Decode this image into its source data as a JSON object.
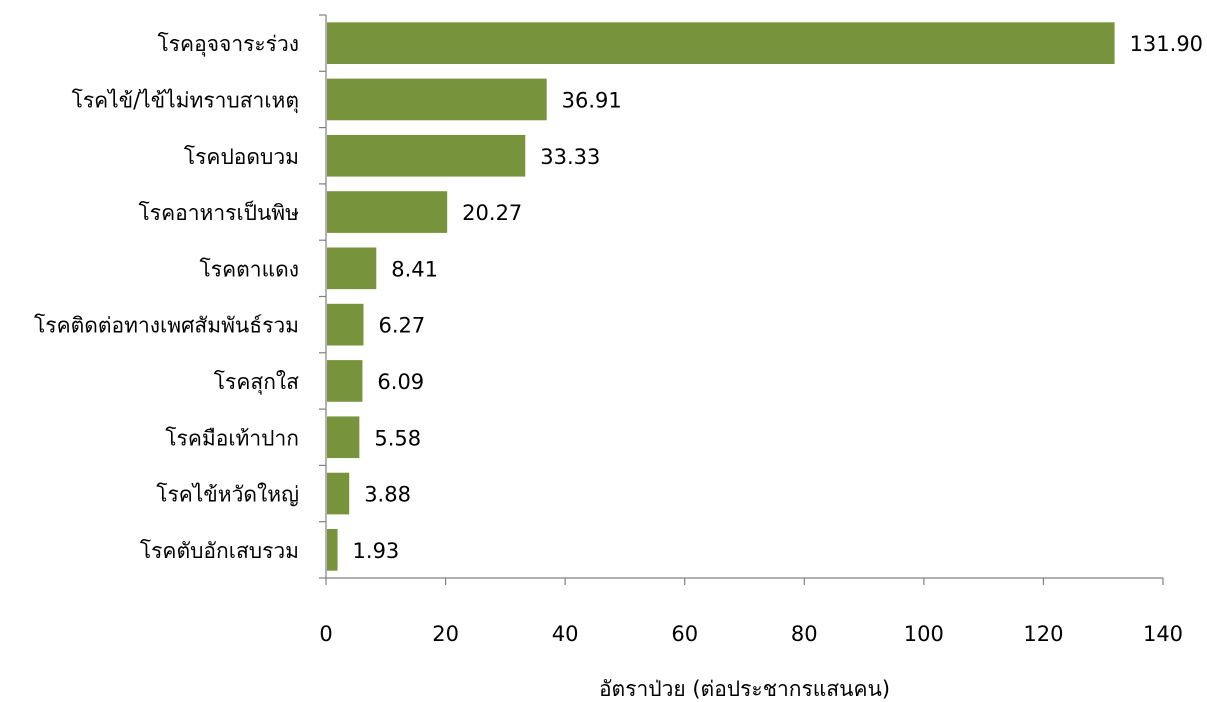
{
  "chart_data": {
    "type": "bar",
    "orientation": "horizontal",
    "categories": [
      "โรคอุจจาระร่วง",
      "โรคไข้/ไข้ไม่ทราบสาเหตุ",
      "โรคปอดบวม",
      "โรคอาหารเป็นพิษ",
      "โรคตาแดง",
      "โรคติดต่อทางเพศสัมพันธ์รวม",
      "โรคสุกใส",
      "โรคมือเท้าปาก",
      "โรคไข้หวัดใหญ่",
      "โรคตับอักเสบรวม"
    ],
    "values": [
      131.9,
      36.91,
      33.33,
      20.27,
      8.41,
      6.27,
      6.09,
      5.58,
      3.88,
      1.93
    ],
    "value_labels": [
      "131.90",
      "36.91",
      "33.33",
      "20.27",
      "8.41",
      "6.27",
      "6.09",
      "5.58",
      "3.88",
      "1.93"
    ],
    "xlabel": "อัตราป่วย (ต่อประชากรแสนคน)",
    "xlim": [
      0,
      140
    ],
    "xticks": [
      "0",
      "20",
      "40",
      "60",
      "80",
      "100",
      "120",
      "140"
    ],
    "bar_color": "#77933c",
    "grid": false,
    "legend": "none"
  }
}
